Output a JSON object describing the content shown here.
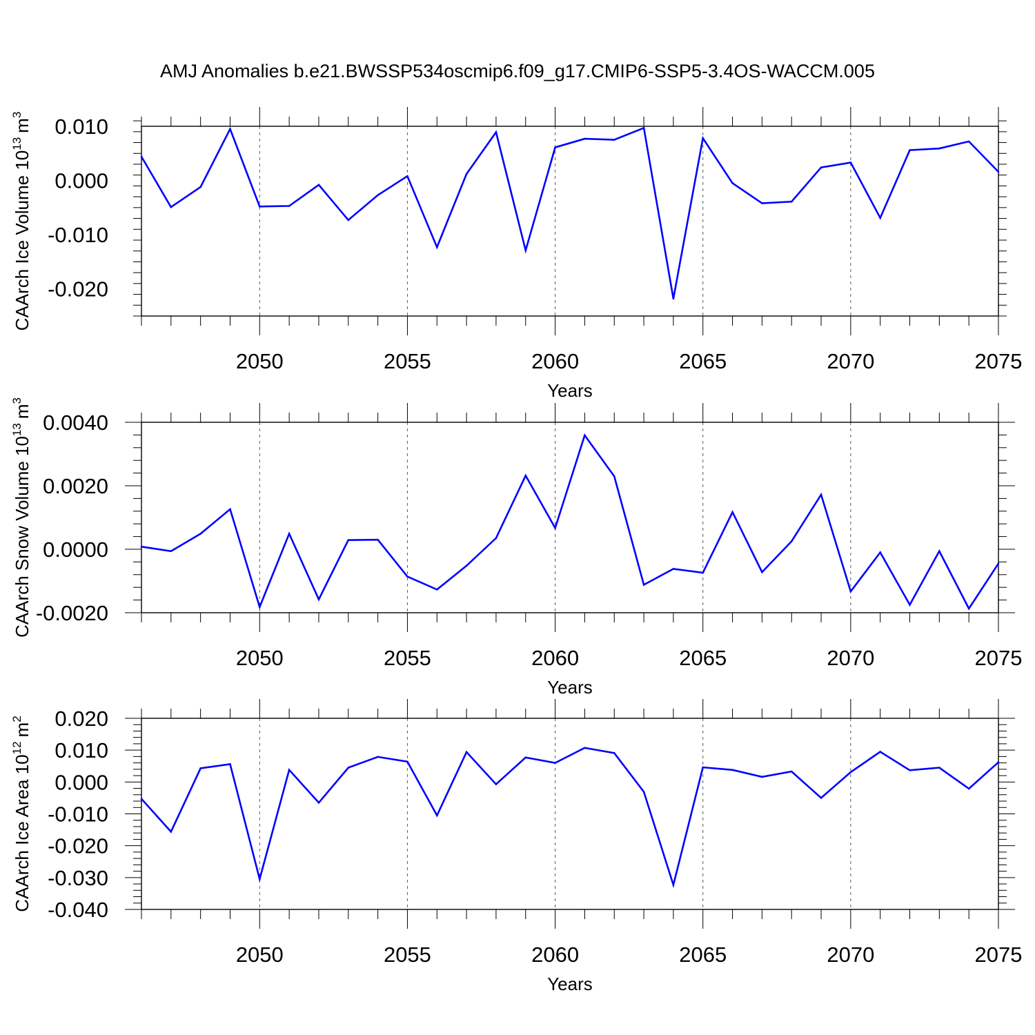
{
  "figure": {
    "title": "AMJ Anomalies b.e21.BWSSP534oscmip6.f09_g17.CMIP6-SSP5-3.4OS-WACCM.005",
    "line_color": "#0000ff"
  },
  "chart_data": [
    {
      "type": "line",
      "title": "",
      "xlabel": "Years",
      "ylabel": "CAArch Ice Volume 10",
      "ylabel_exp": "13",
      "ylabel_unit": "m",
      "ylabel_unit_exp": "3",
      "xlim": [
        2046,
        2075
      ],
      "ylim": [
        -0.025,
        0.01
      ],
      "yticks": [
        0.01,
        0.0,
        -0.01,
        -0.02
      ],
      "ytick_labels": [
        "0.010",
        "0.000",
        "-0.010",
        "-0.020"
      ],
      "ytick_decimals": 3,
      "xticks": [
        2050,
        2055,
        2060,
        2065,
        2070,
        2075
      ],
      "xtick_labels": [
        "2050",
        "2055",
        "2060",
        "2065",
        "2070",
        "2075"
      ],
      "grid": "vertical dashed",
      "series": [
        {
          "name": "CAArch Ice Volume",
          "x": [
            2046,
            2047,
            2048,
            2049,
            2050,
            2051,
            2052,
            2053,
            2054,
            2055,
            2056,
            2057,
            2058,
            2059,
            2060,
            2061,
            2062,
            2063,
            2064,
            2065,
            2066,
            2067,
            2068,
            2069,
            2070,
            2071,
            2072,
            2073,
            2074,
            2075
          ],
          "values": [
            0.0044,
            -0.0049,
            -0.0012,
            0.0095,
            -0.0048,
            -0.0047,
            -0.0008,
            -0.0073,
            -0.0027,
            0.0008,
            -0.0123,
            0.0012,
            0.0089,
            -0.0129,
            0.0061,
            0.0077,
            0.0075,
            0.0097,
            -0.0218,
            0.0078,
            -0.0005,
            -0.0042,
            -0.0039,
            0.0024,
            0.0033,
            -0.0069,
            0.0056,
            0.0059,
            0.0072,
            0.0016
          ]
        }
      ]
    },
    {
      "type": "line",
      "title": "",
      "xlabel": "Years",
      "ylabel": "CAArch Snow Volume 10",
      "ylabel_exp": "13",
      "ylabel_unit": "m",
      "ylabel_unit_exp": "3",
      "xlim": [
        2046,
        2075
      ],
      "ylim": [
        -0.002,
        0.004
      ],
      "yticks": [
        0.004,
        0.002,
        0.0,
        -0.002
      ],
      "ytick_labels": [
        "0.0040",
        "0.0020",
        "0.0000",
        "-0.0020"
      ],
      "ytick_decimals": 4,
      "xticks": [
        2050,
        2055,
        2060,
        2065,
        2070,
        2075
      ],
      "xtick_labels": [
        "2050",
        "2055",
        "2060",
        "2065",
        "2070",
        "2075"
      ],
      "grid": "vertical dashed",
      "series": [
        {
          "name": "CAArch Snow Volume",
          "x": [
            2046,
            2047,
            2048,
            2049,
            2050,
            2051,
            2052,
            2053,
            2054,
            2055,
            2056,
            2057,
            2058,
            2059,
            2060,
            2061,
            2062,
            2063,
            2064,
            2065,
            2066,
            2067,
            2068,
            2069,
            2070,
            2071,
            2072,
            2073,
            2074,
            2075
          ],
          "values": [
            8e-05,
            -6e-05,
            0.00049,
            0.00126,
            -0.00182,
            0.00049,
            -0.00158,
            0.00029,
            0.0003,
            -0.00086,
            -0.00127,
            -0.00052,
            0.00035,
            0.00232,
            0.00067,
            0.00359,
            0.0023,
            -0.00112,
            -0.00062,
            -0.00074,
            0.00117,
            -0.00072,
            0.00025,
            0.00172,
            -0.00133,
            -0.0001,
            -0.00175,
            -6e-05,
            -0.00187,
            -0.00045
          ]
        }
      ]
    },
    {
      "type": "line",
      "title": "",
      "xlabel": "Years",
      "ylabel": "CAArch Ice Area 10",
      "ylabel_exp": "12",
      "ylabel_unit": "m",
      "ylabel_unit_exp": "2",
      "xlim": [
        2046,
        2075
      ],
      "ylim": [
        -0.04,
        0.02
      ],
      "yticks": [
        0.02,
        0.01,
        0.0,
        -0.01,
        -0.02,
        -0.03,
        -0.04
      ],
      "ytick_labels": [
        "0.020",
        "0.010",
        "0.000",
        "-0.010",
        "-0.020",
        "-0.030",
        "-0.040"
      ],
      "ytick_decimals": 3,
      "xticks": [
        2050,
        2055,
        2060,
        2065,
        2070,
        2075
      ],
      "xtick_labels": [
        "2050",
        "2055",
        "2060",
        "2065",
        "2070",
        "2075"
      ],
      "grid": "vertical dashed",
      "series": [
        {
          "name": "CAArch Ice Area",
          "x": [
            2046,
            2047,
            2048,
            2049,
            2050,
            2051,
            2052,
            2053,
            2054,
            2055,
            2056,
            2057,
            2058,
            2059,
            2060,
            2061,
            2062,
            2063,
            2064,
            2065,
            2066,
            2067,
            2068,
            2069,
            2070,
            2071,
            2072,
            2073,
            2074,
            2075
          ],
          "values": [
            -0.0053,
            -0.0156,
            0.0043,
            0.0056,
            -0.0305,
            0.0038,
            -0.0065,
            0.0045,
            0.0079,
            0.0064,
            -0.0105,
            0.0094,
            -0.0007,
            0.0077,
            0.006,
            0.0107,
            0.0091,
            -0.0031,
            -0.0323,
            0.0046,
            0.0038,
            0.0016,
            0.0033,
            -0.005,
            0.0031,
            0.0095,
            0.0037,
            0.0045,
            -0.0021,
            0.0062
          ]
        }
      ]
    }
  ]
}
